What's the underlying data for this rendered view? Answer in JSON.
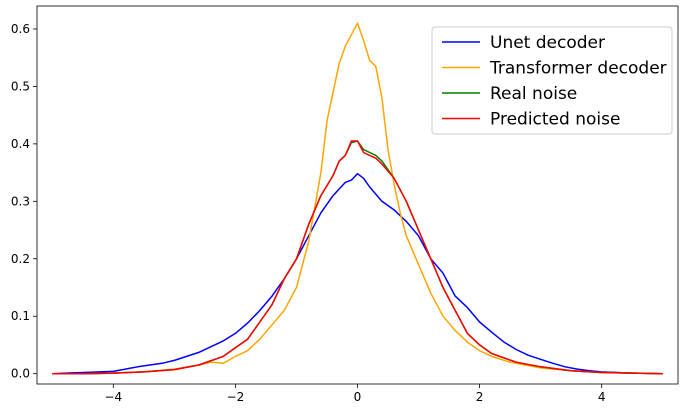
{
  "chart_data": {
    "type": "line",
    "title": "",
    "xlabel": "",
    "ylabel": "",
    "xlim": [
      -5.25,
      5.25
    ],
    "ylim": [
      -0.018,
      0.64
    ],
    "xticks": [
      -4,
      -2,
      0,
      2,
      4
    ],
    "yticks": [
      0.0,
      0.1,
      0.2,
      0.3,
      0.4,
      0.5,
      0.6
    ],
    "xtick_labels": [
      "−4",
      "−2",
      "0",
      "2",
      "4"
    ],
    "ytick_labels": [
      "0.0",
      "0.1",
      "0.2",
      "0.3",
      "0.4",
      "0.5",
      "0.6"
    ],
    "legend_position": "top-right",
    "grid": false,
    "series": [
      {
        "name": "Unet decoder",
        "color": "#0000ff",
        "x": [
          -5.0,
          -4.5,
          -4.0,
          -3.8,
          -3.6,
          -3.4,
          -3.2,
          -3.0,
          -2.8,
          -2.6,
          -2.4,
          -2.2,
          -2.0,
          -1.8,
          -1.6,
          -1.4,
          -1.2,
          -1.0,
          -0.8,
          -0.6,
          -0.4,
          -0.2,
          -0.1,
          0.0,
          0.1,
          0.2,
          0.4,
          0.6,
          0.8,
          1.0,
          1.2,
          1.4,
          1.6,
          1.8,
          2.0,
          2.2,
          2.4,
          2.6,
          2.8,
          3.0,
          3.2,
          3.4,
          3.6,
          3.8,
          4.0,
          4.5,
          5.0
        ],
        "y": [
          0.0,
          0.002,
          0.004,
          0.008,
          0.012,
          0.015,
          0.018,
          0.023,
          0.03,
          0.037,
          0.047,
          0.057,
          0.07,
          0.088,
          0.11,
          0.135,
          0.165,
          0.2,
          0.24,
          0.28,
          0.31,
          0.333,
          0.337,
          0.348,
          0.34,
          0.325,
          0.3,
          0.285,
          0.265,
          0.24,
          0.2,
          0.175,
          0.135,
          0.115,
          0.09,
          0.072,
          0.055,
          0.042,
          0.032,
          0.025,
          0.018,
          0.012,
          0.008,
          0.005,
          0.003,
          0.001,
          0.0
        ]
      },
      {
        "name": "Transformer decoder",
        "color": "#ffa500",
        "x": [
          -5.0,
          -4.5,
          -4.0,
          -3.5,
          -3.0,
          -2.6,
          -2.4,
          -2.2,
          -2.0,
          -1.8,
          -1.6,
          -1.4,
          -1.2,
          -1.0,
          -0.8,
          -0.6,
          -0.5,
          -0.4,
          -0.3,
          -0.2,
          -0.1,
          0.0,
          0.1,
          0.2,
          0.3,
          0.4,
          0.5,
          0.6,
          0.7,
          0.8,
          1.0,
          1.2,
          1.4,
          1.6,
          1.8,
          2.0,
          2.2,
          2.5,
          3.0,
          3.5,
          4.0,
          4.5,
          5.0
        ],
        "y": [
          0.0,
          0.0,
          0.001,
          0.003,
          0.008,
          0.015,
          0.02,
          0.018,
          0.03,
          0.04,
          0.06,
          0.085,
          0.11,
          0.15,
          0.23,
          0.35,
          0.44,
          0.49,
          0.54,
          0.57,
          0.59,
          0.61,
          0.58,
          0.545,
          0.535,
          0.48,
          0.39,
          0.33,
          0.28,
          0.24,
          0.19,
          0.14,
          0.1,
          0.075,
          0.055,
          0.04,
          0.03,
          0.02,
          0.01,
          0.005,
          0.002,
          0.001,
          0.0
        ]
      },
      {
        "name": "Real noise",
        "color": "#008000",
        "x": [
          -5.0,
          -4.5,
          -4.0,
          -3.5,
          -3.0,
          -2.6,
          -2.2,
          -2.0,
          -1.8,
          -1.6,
          -1.4,
          -1.2,
          -1.0,
          -0.8,
          -0.6,
          -0.4,
          -0.3,
          -0.2,
          -0.1,
          0.0,
          0.1,
          0.2,
          0.3,
          0.4,
          0.6,
          0.8,
          1.0,
          1.2,
          1.4,
          1.6,
          1.8,
          2.0,
          2.2,
          2.6,
          3.0,
          3.5,
          4.0,
          4.5,
          5.0
        ],
        "y": [
          0.0,
          0.0,
          0.001,
          0.003,
          0.007,
          0.015,
          0.03,
          0.045,
          0.06,
          0.09,
          0.12,
          0.165,
          0.2,
          0.26,
          0.31,
          0.345,
          0.37,
          0.38,
          0.402,
          0.405,
          0.39,
          0.385,
          0.38,
          0.37,
          0.34,
          0.3,
          0.25,
          0.2,
          0.15,
          0.11,
          0.07,
          0.05,
          0.035,
          0.02,
          0.012,
          0.005,
          0.002,
          0.001,
          0.0
        ]
      },
      {
        "name": "Predicted noise",
        "color": "#ff0000",
        "x": [
          -5.0,
          -4.5,
          -4.0,
          -3.5,
          -3.0,
          -2.6,
          -2.2,
          -2.0,
          -1.8,
          -1.6,
          -1.4,
          -1.2,
          -1.0,
          -0.8,
          -0.6,
          -0.4,
          -0.3,
          -0.2,
          -0.1,
          0.0,
          0.1,
          0.2,
          0.3,
          0.4,
          0.6,
          0.8,
          1.0,
          1.2,
          1.4,
          1.6,
          1.8,
          2.0,
          2.2,
          2.6,
          3.0,
          3.5,
          4.0,
          4.5,
          5.0
        ],
        "y": [
          0.0,
          0.0,
          0.001,
          0.003,
          0.007,
          0.015,
          0.03,
          0.045,
          0.06,
          0.09,
          0.12,
          0.165,
          0.2,
          0.26,
          0.31,
          0.345,
          0.37,
          0.38,
          0.405,
          0.405,
          0.385,
          0.38,
          0.375,
          0.365,
          0.34,
          0.3,
          0.25,
          0.2,
          0.15,
          0.11,
          0.07,
          0.05,
          0.035,
          0.02,
          0.012,
          0.005,
          0.002,
          0.001,
          0.0
        ]
      }
    ]
  }
}
